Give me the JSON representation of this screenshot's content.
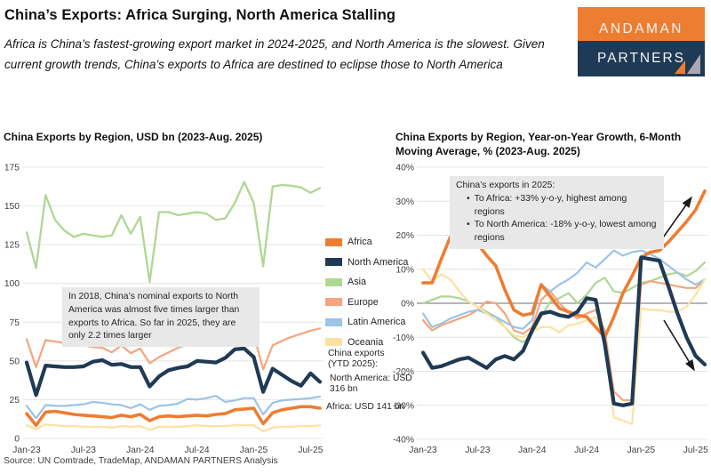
{
  "header": {
    "title": "China’s Exports: Africa Surging, North America Stalling",
    "subtitle": "Africa is China’s fastest-growing export market in 2024-2025, and North America is the slowest. Given current growth trends, China’s exports to Africa are destined to eclipse those to North America",
    "logo": {
      "line1": "ANDAMAN",
      "line2": "PARTNERS",
      "orange_color": "#ED7D31",
      "navy_color": "#1F3A55"
    }
  },
  "legend": {
    "position": "between-charts",
    "items": [
      {
        "label": "Africa",
        "color": "#ED7D31"
      },
      {
        "label": "North America",
        "color": "#1F3A55"
      },
      {
        "label": "Asia",
        "color": "#AFD794"
      },
      {
        "label": "Europe",
        "color": "#F4A57E"
      },
      {
        "label": "Latin America",
        "color": "#9DC3E6"
      },
      {
        "label": "Oceania",
        "color": "#FFE0A1"
      }
    ]
  },
  "annotations": {
    "left_box": "In 2018, China’s nominal exports to North America was almost five times larger than exports to Africa. So far in 2025, they are only 2.2 times larger",
    "right_box_title": "China’s exports in 2025:",
    "right_box_bullets": [
      "To Africa: +33% y-o-y, highest among regions",
      "To North America: -18% y-o-y, lowest among regions"
    ],
    "side_label_1": "China exports (YTD 2025):",
    "side_label_2": "North America: USD 316 bn",
    "side_label_3": "Africa: USD 141 bn"
  },
  "source": "Source: UN Comtrade, TradeMap, ANDAMAN PARTNERS Analysis",
  "chart_data": [
    {
      "type": "line",
      "title": "China Exports by Region, USD bn (2023-Aug. 2025)",
      "ylabel": "USD bn",
      "months": [
        "Jan-23",
        "Feb-23",
        "Mar-23",
        "Apr-23",
        "May-23",
        "Jun-23",
        "Jul-23",
        "Aug-23",
        "Sep-23",
        "Oct-23",
        "Nov-23",
        "Dec-23",
        "Jan-24",
        "Feb-24",
        "Mar-24",
        "Apr-24",
        "May-24",
        "Jun-24",
        "Jul-24",
        "Aug-24",
        "Sep-24",
        "Oct-24",
        "Nov-24",
        "Dec-24",
        "Jan-25",
        "Feb-25",
        "Mar-25",
        "Apr-25",
        "May-25",
        "Jun-25",
        "Jul-25",
        "Aug-25"
      ],
      "x_tick_labels": [
        "Jan-23",
        "Jul-23",
        "Jan-24",
        "Jul-24",
        "Jan-25",
        "Jul-25"
      ],
      "x_tick_indices": [
        0,
        6,
        12,
        18,
        24,
        30
      ],
      "ylim": [
        0,
        175
      ],
      "yticks": [
        0,
        25,
        50,
        75,
        100,
        125,
        150,
        175
      ],
      "ytick_labels": [
        "0",
        "25",
        "50",
        "75",
        "100",
        "125",
        "150",
        "175"
      ],
      "grid": true,
      "zero_line": false,
      "series": [
        {
          "name": "Africa",
          "color": "#ED7D31",
          "width": 3.6,
          "values": [
            16,
            8.5,
            17,
            17.5,
            16.5,
            15.5,
            15,
            14.5,
            14,
            13.5,
            15,
            14,
            15.5,
            11.5,
            14,
            14.5,
            14,
            14.5,
            15,
            14.5,
            15.5,
            16,
            18.5,
            19,
            19.5,
            9.5,
            16.5,
            18.5,
            19.5,
            20.5,
            20.5,
            19.5
          ]
        },
        {
          "name": "North America",
          "color": "#1F3A55",
          "width": 4.2,
          "values": [
            49,
            28,
            47,
            46.5,
            46,
            46,
            46.5,
            49.5,
            50.5,
            47.5,
            48,
            46,
            46,
            33.5,
            40,
            44,
            45.5,
            46.5,
            50,
            49.5,
            49,
            52,
            57.5,
            58,
            52.5,
            30,
            45,
            41,
            37,
            34,
            42,
            36.5
          ]
        },
        {
          "name": "Asia",
          "color": "#AFD794",
          "width": 2.3,
          "values": [
            133,
            110,
            157,
            141,
            134,
            130,
            132,
            131,
            130,
            131,
            144,
            132,
            143,
            101,
            146,
            146,
            144,
            145,
            146,
            145,
            141,
            142,
            152,
            165.5,
            152,
            111,
            162.5,
            163.5,
            163,
            162,
            158.5,
            161.5
          ]
        },
        {
          "name": "Europe",
          "color": "#F4A57E",
          "width": 2.2,
          "values": [
            64,
            46,
            63.5,
            62.5,
            61.5,
            61,
            60,
            59,
            58.5,
            55.5,
            60,
            55,
            58,
            48.5,
            52.5,
            55.5,
            58.5,
            60.5,
            62.5,
            63.5,
            64.5,
            65.5,
            66,
            64.5,
            67,
            44.5,
            60,
            63,
            65.5,
            67.5,
            69.5,
            71
          ]
        },
        {
          "name": "Latin America",
          "color": "#9DC3E6",
          "width": 2.2,
          "values": [
            21,
            13,
            21.5,
            21,
            21,
            21.5,
            22,
            23.5,
            23,
            22,
            21.5,
            19.5,
            22,
            18.5,
            21,
            21.5,
            22.5,
            25.5,
            25,
            26,
            27.5,
            23.5,
            24.5,
            26,
            26,
            15.5,
            23,
            24.5,
            25,
            25.5,
            26,
            27
          ]
        },
        {
          "name": "Oceania",
          "color": "#FFE0A1",
          "width": 2.2,
          "values": [
            8.5,
            6,
            9,
            8.5,
            8,
            8,
            7.5,
            7.5,
            7.5,
            7,
            8,
            7.5,
            8,
            5.5,
            7.5,
            7.5,
            7.5,
            8,
            8.5,
            8,
            8,
            8,
            8.5,
            8.5,
            8.5,
            4.5,
            7,
            7.5,
            7.5,
            8,
            8,
            8.5
          ]
        }
      ]
    },
    {
      "type": "line",
      "title": "China Exports by Region, Year-on-Year Growth, 6-Month Moving Average, % (2023-Aug. 2025)",
      "ylabel": "% y-o-y, 6-month moving average",
      "months": [
        "Jan-23",
        "Feb-23",
        "Mar-23",
        "Apr-23",
        "May-23",
        "Jun-23",
        "Jul-23",
        "Aug-23",
        "Sep-23",
        "Oct-23",
        "Nov-23",
        "Dec-23",
        "Jan-24",
        "Feb-24",
        "Mar-24",
        "Apr-24",
        "May-24",
        "Jun-24",
        "Jul-24",
        "Aug-24",
        "Sep-24",
        "Oct-24",
        "Nov-24",
        "Dec-24",
        "Jan-25",
        "Feb-25",
        "Mar-25",
        "Apr-25",
        "May-25",
        "Jun-25",
        "Jul-25",
        "Aug-25"
      ],
      "x_tick_labels": [
        "Jan-23",
        "Jul-23",
        "Jan-24",
        "Jul-24",
        "Jan-25",
        "Jul-25"
      ],
      "x_tick_indices": [
        0,
        6,
        12,
        18,
        24,
        30
      ],
      "ylim": [
        -40,
        40
      ],
      "yticks": [
        -40,
        -30,
        -20,
        -10,
        0,
        10,
        20,
        30,
        40
      ],
      "ytick_labels": [
        "-40%",
        "-30%",
        "-20%",
        "-10%",
        "0%",
        "10%",
        "20%",
        "30%",
        "40%"
      ],
      "grid": true,
      "zero_line": true,
      "annotation_arrows": [
        {
          "direction": "up",
          "series": "Africa"
        },
        {
          "direction": "down",
          "series": "North America"
        }
      ],
      "series": [
        {
          "name": "Africa",
          "color": "#ED7D31",
          "width": 3.6,
          "values": [
            6,
            6,
            13,
            19.5,
            20.5,
            19,
            17.5,
            14,
            11,
            4,
            -2,
            -3.5,
            -3,
            5.5,
            2,
            -1.5,
            -2.5,
            -3.5,
            -4,
            -7,
            -10,
            -4,
            3,
            8,
            13.5,
            15,
            15.5,
            18,
            21,
            24,
            27.5,
            33
          ]
        },
        {
          "name": "North America",
          "color": "#1F3A55",
          "width": 4.2,
          "values": [
            -14.5,
            -19,
            -18.5,
            -17.5,
            -16.5,
            -16,
            -17.5,
            -19,
            -16.5,
            -15.5,
            -16.5,
            -14,
            -8,
            -3,
            -2.5,
            -3.5,
            -4,
            -2.5,
            1.5,
            1,
            -12,
            -29.5,
            -30,
            -29.5,
            13.5,
            13,
            12.5,
            5,
            -3,
            -10,
            -15.5,
            -18
          ]
        },
        {
          "name": "Asia",
          "color": "#AFD794",
          "width": 2.2,
          "values": [
            0,
            1,
            2,
            2,
            1.5,
            0.5,
            -1,
            -2.5,
            -4,
            -7,
            -10,
            -11.5,
            -9,
            -4,
            0.5,
            1.5,
            3,
            0,
            2.5,
            6,
            7.5,
            3.5,
            3,
            4.5,
            6,
            6.5,
            7.5,
            8.5,
            9,
            8,
            9.5,
            12
          ]
        },
        {
          "name": "Europe",
          "color": "#F4A57E",
          "width": 2.2,
          "values": [
            -5,
            -8,
            -6.5,
            -5.5,
            -4.5,
            -3.5,
            -2,
            0.5,
            0,
            -3,
            -8,
            -9,
            -7,
            1,
            3.5,
            0,
            -2.5,
            -4.5,
            -3,
            -2,
            -8,
            -26,
            -28.5,
            -28.5,
            5.5,
            6.5,
            6,
            5.5,
            5,
            4.5,
            4.5,
            7
          ]
        },
        {
          "name": "Latin America",
          "color": "#9DC3E6",
          "width": 2.2,
          "values": [
            -3,
            -7,
            -6,
            -4.5,
            -3.5,
            -2.5,
            -2,
            -3,
            -4,
            -5.5,
            -7,
            -7.5,
            -5,
            5.5,
            3.5,
            5.5,
            7,
            9,
            12,
            10.5,
            13,
            15.5,
            14,
            15,
            15.5,
            14.5,
            13,
            11,
            9,
            7,
            5.5,
            7
          ]
        },
        {
          "name": "Oceania",
          "color": "#FFE0A1",
          "width": 2.2,
          "values": [
            10,
            6.5,
            8.5,
            7,
            3.5,
            0.5,
            -1,
            -3,
            -5,
            -7,
            -9.5,
            -10,
            -8.5,
            -7,
            -7,
            -8.5,
            -6.5,
            -6,
            -5,
            -4,
            -12,
            -33.5,
            -34.5,
            -35.5,
            -1.5,
            -2,
            -2,
            -2.5,
            -2.5,
            -1,
            2.5,
            7
          ]
        }
      ]
    }
  ]
}
